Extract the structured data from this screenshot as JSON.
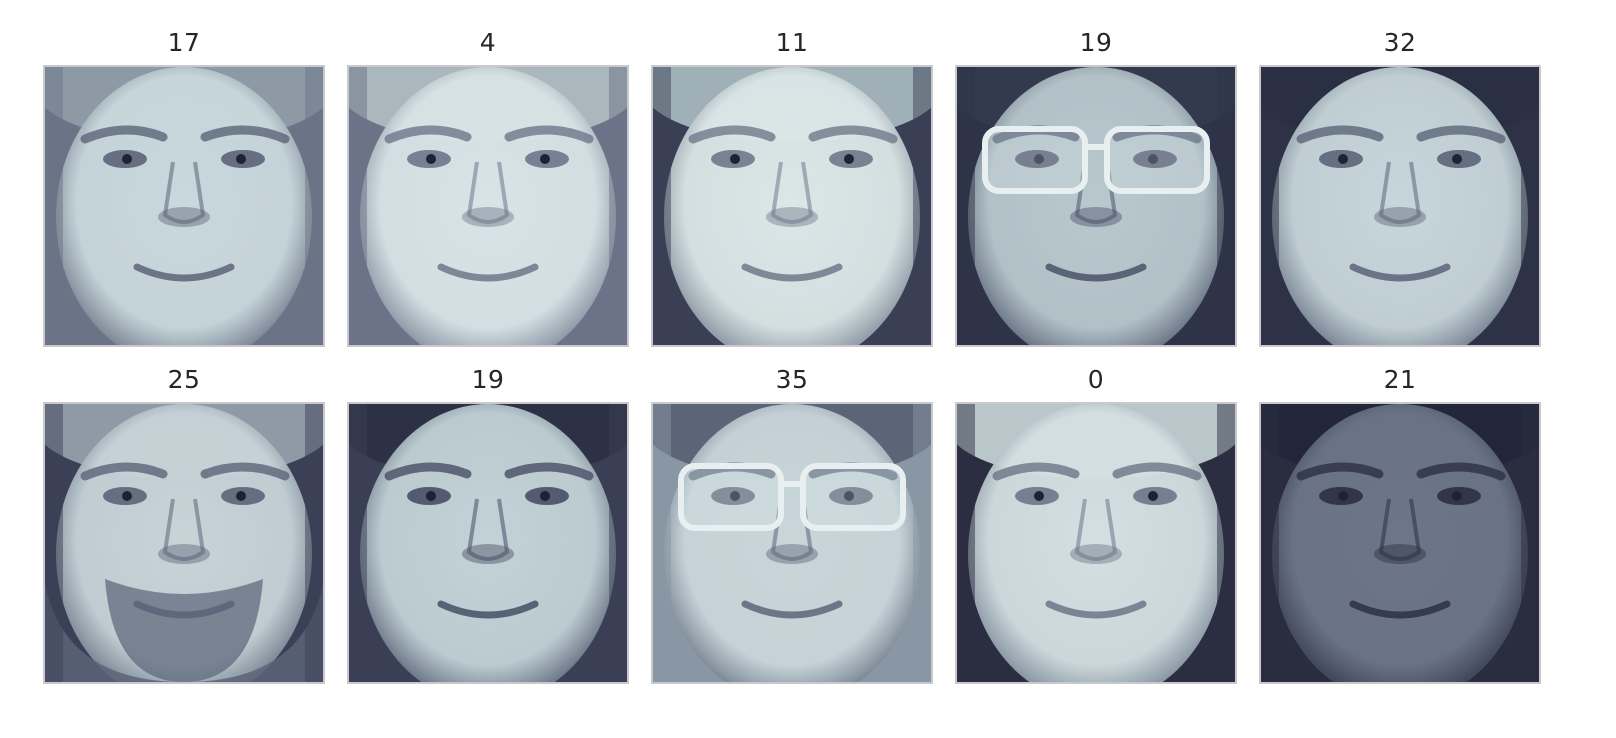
{
  "faces": [
    {
      "label": "17",
      "skin": "#c9d8dc",
      "shade": "#5a6477",
      "bg": "#6b7387",
      "hair": "#8d9aa6",
      "glasses": false,
      "beard": false
    },
    {
      "label": "4",
      "skin": "#d7e4e6",
      "shade": "#6c7789",
      "bg": "#6c7288",
      "hair": "#aab8bd",
      "glasses": false,
      "beard": false
    },
    {
      "label": "11",
      "skin": "#dbe7e7",
      "shade": "#6e798a",
      "bg": "#3b3f55",
      "hair": "#9fb0b6",
      "glasses": false,
      "beard": false
    },
    {
      "label": "19",
      "skin": "#b8c8cd",
      "shade": "#4b5369",
      "bg": "#2f3347",
      "hair": "#333a4e",
      "glasses": true,
      "beard": false
    },
    {
      "label": "32",
      "skin": "#c7d6da",
      "shade": "#5a6478",
      "bg": "#2e3246",
      "hair": "#2b2f43",
      "glasses": false,
      "beard": false
    },
    {
      "label": "25",
      "skin": "#c6d4d8",
      "shade": "#5a6477",
      "bg": "#3b4056",
      "hair": "#8e9ba6",
      "glasses": false,
      "beard": true
    },
    {
      "label": "19",
      "skin": "#c2d2d6",
      "shade": "#474f65",
      "bg": "#3a3f56",
      "hair": "#2c3145",
      "glasses": false,
      "beard": false
    },
    {
      "label": "35",
      "skin": "#c8d6da",
      "shade": "#5b6578",
      "bg": "#8996a3",
      "hair": "#5b6578",
      "glasses": true,
      "beard": false
    },
    {
      "label": "0",
      "skin": "#d3e0e2",
      "shade": "#6a7587",
      "bg": "#2b2e40",
      "hair": "#b9c7cb",
      "glasses": false,
      "beard": false
    },
    {
      "label": "21",
      "skin": "#6d7689",
      "shade": "#2c3043",
      "bg": "#2a2d3f",
      "hair": "#23263a",
      "glasses": false,
      "beard": false
    }
  ]
}
